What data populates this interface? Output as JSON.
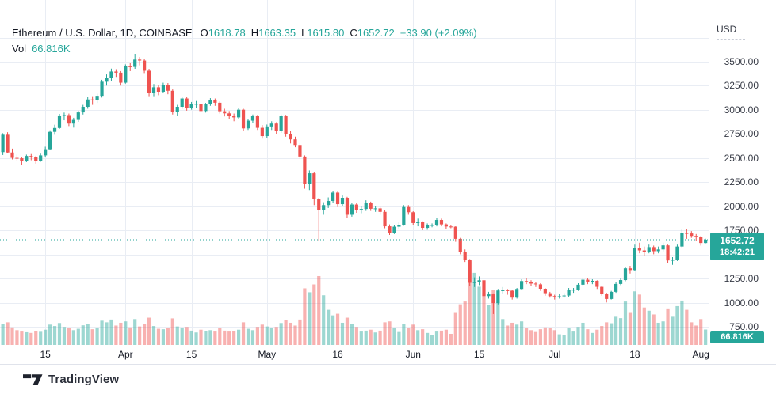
{
  "legend": {
    "title": "Ethereum / U.S. Dollar, 1D, COINBASE",
    "items": [
      {
        "label": "O",
        "value": "1618.78"
      },
      {
        "label": "H",
        "value": "1663.35"
      },
      {
        "label": "L",
        "value": "1615.80"
      },
      {
        "label": "C",
        "value": "1652.72"
      }
    ],
    "change": "+33.90 (+2.09%)",
    "vol_label": "Vol",
    "vol_value": "66.816K"
  },
  "price_axis": {
    "currency": "USD",
    "ticks": [
      {
        "value": 3750,
        "label": ""
      },
      {
        "value": 3500,
        "label": "3500.00"
      },
      {
        "value": 3250,
        "label": "3250.00"
      },
      {
        "value": 3000,
        "label": "3000.00"
      },
      {
        "value": 2750,
        "label": "2750.00"
      },
      {
        "value": 2500,
        "label": "2500.00"
      },
      {
        "value": 2250,
        "label": "2250.00"
      },
      {
        "value": 2000,
        "label": "2000.00"
      },
      {
        "value": 1750,
        "label": "1750.00"
      },
      {
        "value": 1500,
        "label": ""
      },
      {
        "value": 1250,
        "label": "1250.00"
      },
      {
        "value": 1000,
        "label": "1000.00"
      },
      {
        "value": 750,
        "label": "750.00"
      }
    ]
  },
  "price_badge": {
    "price": "1652.72",
    "countdown": "18:42:21"
  },
  "volume_badge": {
    "text": "66.816K"
  },
  "time_axis": {
    "labels": [
      {
        "text": "15",
        "idx": 9
      },
      {
        "text": "Apr",
        "idx": 26
      },
      {
        "text": "15",
        "idx": 40
      },
      {
        "text": "May",
        "idx": 56
      },
      {
        "text": "16",
        "idx": 71
      },
      {
        "text": "Jun",
        "idx": 87
      },
      {
        "text": "15",
        "idx": 101
      },
      {
        "text": "Jul",
        "idx": 117
      },
      {
        "text": "18",
        "idx": 134
      },
      {
        "text": "Aug",
        "idx": 148
      }
    ]
  },
  "footer": {
    "brand": "TradingView"
  },
  "colors": {
    "up": "#26a69a",
    "down": "#ef5350",
    "vol_up": "rgba(38,166,154,0.45)",
    "vol_down": "rgba(239,83,80,0.45)",
    "grid": "#e9edf4",
    "text": "#131722",
    "axis_text": "#363a45",
    "badge_bg": "#26a69a",
    "badge_text": "#ffffff"
  },
  "chart_data": {
    "type": "candlestick+volume",
    "title": "Ethereum / U.S. Dollar",
    "interval": "1D",
    "exchange": "COINBASE",
    "legend_position": "top-left",
    "grid": true,
    "visible_price_range": [
      562,
      4140
    ],
    "price_gridline_step": 250,
    "current": {
      "open": 1618.78,
      "high": 1663.35,
      "low": 1615.8,
      "close": 1652.72,
      "change": 33.9,
      "change_pct": 2.09,
      "volume_k": 66.816,
      "countdown": "18:42:21"
    },
    "candle_format": [
      "open",
      "high",
      "low",
      "close",
      "volume_k"
    ],
    "candles": [
      [
        2562,
        2758,
        2532,
        2742,
        92
      ],
      [
        2742,
        2768,
        2548,
        2558,
        98
      ],
      [
        2558,
        2598,
        2486,
        2502,
        76
      ],
      [
        2502,
        2538,
        2468,
        2498,
        64
      ],
      [
        2498,
        2512,
        2432,
        2468,
        58
      ],
      [
        2468,
        2536,
        2458,
        2522,
        55
      ],
      [
        2522,
        2542,
        2478,
        2508,
        52
      ],
      [
        2508,
        2524,
        2442,
        2472,
        60
      ],
      [
        2472,
        2546,
        2462,
        2528,
        57
      ],
      [
        2528,
        2618,
        2510,
        2592,
        66
      ],
      [
        2592,
        2788,
        2582,
        2772,
        88
      ],
      [
        2772,
        2846,
        2742,
        2812,
        82
      ],
      [
        2812,
        2958,
        2802,
        2942,
        95
      ],
      [
        2942,
        2972,
        2892,
        2946,
        78
      ],
      [
        2946,
        2962,
        2832,
        2858,
        72
      ],
      [
        2858,
        2918,
        2816,
        2896,
        64
      ],
      [
        2896,
        2992,
        2876,
        2974,
        70
      ],
      [
        2974,
        3052,
        2952,
        3032,
        85
      ],
      [
        3032,
        3132,
        3012,
        3108,
        90
      ],
      [
        3108,
        3142,
        3052,
        3098,
        68
      ],
      [
        3098,
        3168,
        3072,
        3146,
        72
      ],
      [
        3146,
        3312,
        3128,
        3292,
        105
      ],
      [
        3292,
        3368,
        3252,
        3332,
        98
      ],
      [
        3332,
        3428,
        3302,
        3398,
        110
      ],
      [
        3398,
        3422,
        3342,
        3386,
        84
      ],
      [
        3386,
        3402,
        3252,
        3282,
        96
      ],
      [
        3282,
        3472,
        3272,
        3452,
        102
      ],
      [
        3452,
        3488,
        3402,
        3446,
        76
      ],
      [
        3446,
        3582,
        3426,
        3522,
        112
      ],
      [
        3522,
        3548,
        3462,
        3512,
        80
      ],
      [
        3512,
        3528,
        3382,
        3406,
        92
      ],
      [
        3406,
        3426,
        3142,
        3172,
        118
      ],
      [
        3172,
        3268,
        3142,
        3234,
        82
      ],
      [
        3234,
        3262,
        3152,
        3188,
        70
      ],
      [
        3188,
        3282,
        3172,
        3262,
        68
      ],
      [
        3262,
        3278,
        3162,
        3198,
        72
      ],
      [
        3198,
        3212,
        2952,
        2978,
        115
      ],
      [
        2978,
        3052,
        2942,
        3032,
        80
      ],
      [
        3032,
        3138,
        3012,
        3118,
        74
      ],
      [
        3118,
        3132,
        2992,
        3022,
        78
      ],
      [
        3022,
        3082,
        3002,
        3058,
        62
      ],
      [
        3058,
        3092,
        3022,
        3062,
        54
      ],
      [
        3062,
        3078,
        2962,
        2988,
        66
      ],
      [
        2988,
        3072,
        2972,
        3058,
        60
      ],
      [
        3058,
        3122,
        3042,
        3102,
        64
      ],
      [
        3102,
        3118,
        3042,
        3074,
        58
      ],
      [
        3074,
        3088,
        2962,
        2986,
        72
      ],
      [
        2986,
        3012,
        2932,
        2964,
        62
      ],
      [
        2964,
        2988,
        2902,
        2936,
        58
      ],
      [
        2936,
        2962,
        2882,
        2922,
        60
      ],
      [
        2922,
        3018,
        2902,
        3002,
        66
      ],
      [
        3002,
        3012,
        2782,
        2808,
        98
      ],
      [
        2808,
        2902,
        2792,
        2888,
        70
      ],
      [
        2888,
        2952,
        2862,
        2934,
        64
      ],
      [
        2934,
        2948,
        2792,
        2814,
        78
      ],
      [
        2814,
        2842,
        2702,
        2728,
        88
      ],
      [
        2728,
        2848,
        2712,
        2828,
        80
      ],
      [
        2828,
        2882,
        2792,
        2858,
        72
      ],
      [
        2858,
        2872,
        2752,
        2780,
        78
      ],
      [
        2780,
        2952,
        2762,
        2938,
        95
      ],
      [
        2938,
        2948,
        2722,
        2748,
        108
      ],
      [
        2748,
        2782,
        2652,
        2694,
        96
      ],
      [
        2694,
        2722,
        2612,
        2636,
        84
      ],
      [
        2636,
        2652,
        2492,
        2516,
        110
      ],
      [
        2516,
        2528,
        2182,
        2228,
        245
      ],
      [
        2228,
        2372,
        2168,
        2342,
        228
      ],
      [
        2342,
        2352,
        2012,
        2076,
        262
      ],
      [
        2076,
        2088,
        1642,
        1958,
        298
      ],
      [
        1958,
        2042,
        1912,
        2012,
        215
      ],
      [
        2012,
        2092,
        1982,
        2055,
        152
      ],
      [
        2055,
        2162,
        2032,
        2142,
        128
      ],
      [
        2142,
        2152,
        1992,
        2022,
        135
      ],
      [
        2022,
        2112,
        2002,
        2088,
        96
      ],
      [
        2088,
        2098,
        1882,
        1912,
        118
      ],
      [
        1912,
        2038,
        1892,
        2018,
        92
      ],
      [
        2018,
        2032,
        1932,
        1958,
        78
      ],
      [
        1958,
        1998,
        1928,
        1972,
        58
      ],
      [
        1972,
        2062,
        1952,
        2038,
        62
      ],
      [
        2038,
        2048,
        1952,
        1974,
        66
      ],
      [
        1974,
        2002,
        1942,
        1978,
        54
      ],
      [
        1978,
        1992,
        1912,
        1942,
        62
      ],
      [
        1942,
        1962,
        1772,
        1792,
        98
      ],
      [
        1792,
        1812,
        1702,
        1724,
        102
      ],
      [
        1724,
        1802,
        1712,
        1788,
        72
      ],
      [
        1788,
        1832,
        1762,
        1808,
        56
      ],
      [
        1808,
        2012,
        1798,
        1992,
        92
      ],
      [
        1992,
        2012,
        1912,
        1938,
        74
      ],
      [
        1938,
        1948,
        1802,
        1826,
        88
      ],
      [
        1826,
        1872,
        1792,
        1834,
        64
      ],
      [
        1834,
        1844,
        1752,
        1776,
        68
      ],
      [
        1776,
        1822,
        1756,
        1802,
        52
      ],
      [
        1802,
        1822,
        1782,
        1806,
        44
      ],
      [
        1806,
        1882,
        1792,
        1858,
        58
      ],
      [
        1858,
        1872,
        1792,
        1812,
        62
      ],
      [
        1812,
        1822,
        1762,
        1790,
        66
      ],
      [
        1790,
        1802,
        1772,
        1788,
        48
      ],
      [
        1788,
        1792,
        1632,
        1662,
        142
      ],
      [
        1662,
        1672,
        1502,
        1528,
        176
      ],
      [
        1528,
        1552,
        1422,
        1442,
        188
      ],
      [
        1442,
        1452,
        1172,
        1206,
        362
      ],
      [
        1206,
        1262,
        1162,
        1212,
        312
      ],
      [
        1212,
        1272,
        1182,
        1232,
        252
      ],
      [
        1232,
        1242,
        1022,
        1068,
        225
      ],
      [
        1068,
        1112,
        1042,
        1086,
        172
      ],
      [
        1086,
        1096,
        882,
        996,
        238
      ],
      [
        996,
        1142,
        982,
        1126,
        186
      ],
      [
        1126,
        1162,
        1096,
        1128,
        112
      ],
      [
        1128,
        1142,
        1082,
        1124,
        84
      ],
      [
        1124,
        1132,
        1032,
        1052,
        96
      ],
      [
        1052,
        1152,
        1042,
        1142,
        88
      ],
      [
        1142,
        1242,
        1132,
        1224,
        102
      ],
      [
        1224,
        1252,
        1192,
        1218,
        74
      ],
      [
        1218,
        1232,
        1172,
        1198,
        64
      ],
      [
        1198,
        1212,
        1162,
        1190,
        56
      ],
      [
        1190,
        1202,
        1122,
        1144,
        68
      ],
      [
        1144,
        1152,
        1072,
        1098,
        76
      ],
      [
        1098,
        1112,
        1052,
        1068,
        72
      ],
      [
        1068,
        1082,
        1032,
        1058,
        64
      ],
      [
        1058,
        1092,
        1042,
        1066,
        46
      ],
      [
        1066,
        1098,
        1052,
        1074,
        42
      ],
      [
        1074,
        1152,
        1062,
        1132,
        72
      ],
      [
        1132,
        1152,
        1102,
        1134,
        58
      ],
      [
        1134,
        1202,
        1122,
        1186,
        78
      ],
      [
        1186,
        1262,
        1172,
        1238,
        96
      ],
      [
        1238,
        1252,
        1192,
        1216,
        68
      ],
      [
        1216,
        1242,
        1192,
        1226,
        52
      ],
      [
        1226,
        1232,
        1142,
        1164,
        66
      ],
      [
        1164,
        1172,
        1072,
        1094,
        82
      ],
      [
        1094,
        1102,
        1002,
        1038,
        98
      ],
      [
        1038,
        1122,
        1032,
        1112,
        94
      ],
      [
        1112,
        1212,
        1102,
        1194,
        122
      ],
      [
        1194,
        1252,
        1182,
        1234,
        116
      ],
      [
        1234,
        1372,
        1222,
        1356,
        188
      ],
      [
        1356,
        1382,
        1302,
        1338,
        142
      ],
      [
        1338,
        1602,
        1332,
        1568,
        232
      ],
      [
        1568,
        1622,
        1512,
        1542,
        218
      ],
      [
        1542,
        1582,
        1482,
        1528,
        162
      ],
      [
        1528,
        1602,
        1512,
        1576,
        148
      ],
      [
        1576,
        1592,
        1502,
        1534,
        132
      ],
      [
        1534,
        1582,
        1512,
        1552,
        96
      ],
      [
        1552,
        1622,
        1532,
        1594,
        102
      ],
      [
        1594,
        1602,
        1412,
        1438,
        158
      ],
      [
        1438,
        1472,
        1392,
        1444,
        122
      ],
      [
        1444,
        1602,
        1432,
        1582,
        168
      ],
      [
        1582,
        1768,
        1572,
        1722,
        192
      ],
      [
        1722,
        1762,
        1662,
        1718,
        152
      ],
      [
        1718,
        1742,
        1672,
        1692,
        98
      ],
      [
        1692,
        1712,
        1642,
        1678,
        84
      ],
      [
        1678,
        1692,
        1592,
        1619,
        112
      ],
      [
        1618.78,
        1663.35,
        1615.8,
        1652.72,
        66.816
      ]
    ]
  }
}
